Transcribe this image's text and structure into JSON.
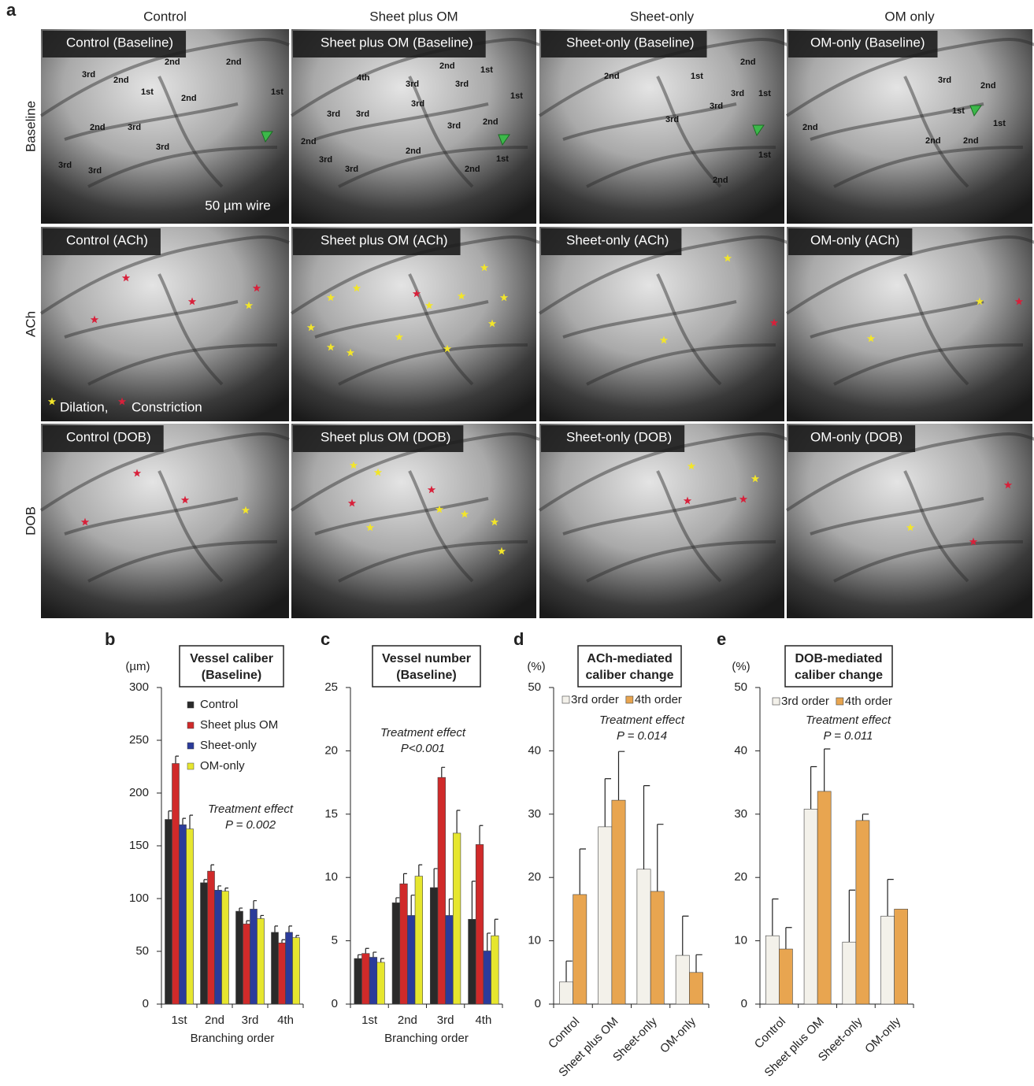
{
  "panel_a": {
    "label": "a",
    "columns": [
      "Control",
      "Sheet plus OM",
      "Sheet-only",
      "OM only"
    ],
    "rows": [
      "Baseline",
      "ACh",
      "DOB"
    ],
    "images": [
      [
        "Control (Baseline)",
        "Sheet plus OM (Baseline)",
        "Sheet-only (Baseline)",
        "OM-only (Baseline)"
      ],
      [
        "Control (ACh)",
        "Sheet plus OM (ACh)",
        "Sheet-only (ACh)",
        "OM-only (ACh)"
      ],
      [
        "Control (DOB)",
        "Sheet plus OM (DOB)",
        "Sheet-only (DOB)",
        "OM-only (DOB)"
      ]
    ],
    "order_labels": [
      [
        "3rd",
        "2nd",
        "2nd",
        "2nd",
        "1st",
        "2nd",
        "1st",
        "2nd",
        "3rd",
        "3rd",
        "3rd",
        "3rd"
      ],
      [
        "4th",
        "3rd",
        "2nd",
        "1st",
        "3rd",
        "3rd",
        "1st",
        "3rd",
        "3rd",
        "3rd",
        "2nd",
        "2nd",
        "2nd",
        "3rd",
        "3rd",
        "1st",
        "2nd"
      ],
      [
        "2nd",
        "1st",
        "2nd",
        "3rd",
        "1st",
        "3rd",
        "3rd",
        "1st",
        "2nd"
      ],
      [
        "3rd",
        "2nd",
        "1st",
        "1st",
        "2nd",
        "2nd",
        "2nd"
      ]
    ],
    "scale_label": "50 µm wire",
    "dilation": "Dilation,",
    "constriction": "Constriction"
  },
  "chart_data": [
    {
      "type": "bar",
      "panel": "b",
      "title": "Vessel caliber",
      "subtitle": "(Baseline)",
      "y_label": "(µm)",
      "x_label": "Branching order",
      "annotations": [
        "Treatment effect",
        "P = 0.002"
      ],
      "categories": [
        "1st",
        "2nd",
        "3rd",
        "4th"
      ],
      "series": [
        {
          "name": "Control",
          "color": "#2a2a2a",
          "values": [
            175,
            115,
            88,
            68
          ],
          "errors": [
            8,
            3,
            3,
            6
          ]
        },
        {
          "name": "Sheet plus OM",
          "color": "#d02a2a",
          "values": [
            228,
            126,
            76,
            58
          ],
          "errors": [
            7,
            6,
            3,
            3
          ]
        },
        {
          "name": "Sheet-only",
          "color": "#2b3b9a",
          "values": [
            170,
            108,
            90,
            68
          ],
          "errors": [
            6,
            4,
            8,
            6
          ]
        },
        {
          "name": "OM-only",
          "color": "#e6e62e",
          "values": [
            166,
            107,
            81,
            63
          ],
          "errors": [
            13,
            3,
            3,
            2
          ]
        }
      ],
      "ylim": [
        0,
        300
      ],
      "yticks": [
        0,
        50,
        100,
        150,
        200,
        250,
        300
      ],
      "legend": "upper left"
    },
    {
      "type": "bar",
      "panel": "c",
      "title": "Vessel number",
      "subtitle": "(Baseline)",
      "x_label": "Branching order",
      "annotations": [
        "Treatment effect",
        "P<0.001"
      ],
      "categories": [
        "1st",
        "2nd",
        "3rd",
        "4th"
      ],
      "series": [
        {
          "name": "Control",
          "color": "#2a2a2a",
          "values": [
            3.6,
            8.0,
            9.2,
            6.7
          ],
          "errors": [
            0.3,
            0.4,
            1.5,
            3.0
          ]
        },
        {
          "name": "Sheet plus OM",
          "color": "#d02a2a",
          "values": [
            4.0,
            9.5,
            17.9,
            12.6
          ],
          "errors": [
            0.4,
            0.8,
            0.8,
            1.5
          ]
        },
        {
          "name": "Sheet-only",
          "color": "#2b3b9a",
          "values": [
            3.7,
            7.0,
            7.0,
            4.2
          ],
          "errors": [
            0.4,
            1.6,
            1.3,
            1.4
          ]
        },
        {
          "name": "OM-only",
          "color": "#e6e62e",
          "values": [
            3.3,
            10.1,
            13.5,
            5.4
          ],
          "errors": [
            0.3,
            0.9,
            1.8,
            1.3
          ]
        }
      ],
      "ylim": [
        0,
        25
      ],
      "yticks": [
        0,
        5,
        10,
        15,
        20,
        25
      ],
      "legend": false
    },
    {
      "type": "bar",
      "panel": "d",
      "title": "ACh-mediated",
      "subtitle": "caliber change",
      "y_label": "(%)",
      "annotations": [
        "Treatment effect",
        "P = 0.014"
      ],
      "categories": [
        "Control",
        "Sheet plus OM",
        "Sheet-only",
        "OM-only"
      ],
      "series": [
        {
          "name": "3rd order",
          "color": "#f3f1ea",
          "values": [
            3.5,
            28,
            21.3,
            7.7
          ],
          "errors": [
            3.3,
            7.6,
            13.2,
            6.2
          ]
        },
        {
          "name": "4th order",
          "color": "#e8a550",
          "values": [
            17.3,
            32.2,
            17.8,
            5.0
          ],
          "errors": [
            7.2,
            7.7,
            10.6,
            2.8
          ]
        }
      ],
      "ylim": [
        0,
        50
      ],
      "yticks": [
        0,
        10,
        20,
        30,
        40,
        50
      ],
      "legend": "top",
      "xtick_rotation": 45
    },
    {
      "type": "bar",
      "panel": "e",
      "title": "DOB-mediated",
      "subtitle": "caliber change",
      "y_label": "(%)",
      "annotations": [
        "Treatment effect",
        "P = 0.011"
      ],
      "categories": [
        "Control",
        "Sheet plus OM",
        "Sheet-only",
        "OM-only"
      ],
      "series": [
        {
          "name": "3rd order",
          "color": "#f3f1ea",
          "values": [
            10.8,
            30.8,
            9.8,
            13.9
          ],
          "errors": [
            5.8,
            6.7,
            8.2,
            5.8
          ]
        },
        {
          "name": "4th order",
          "color": "#e8a550",
          "values": [
            8.7,
            33.6,
            29.0,
            15.0
          ],
          "errors": [
            3.4,
            6.7,
            1.0,
            null
          ]
        }
      ],
      "ylim": [
        0,
        50
      ],
      "yticks": [
        0,
        10,
        20,
        30,
        40,
        50
      ],
      "legend": "top",
      "xtick_rotation": 45
    }
  ]
}
